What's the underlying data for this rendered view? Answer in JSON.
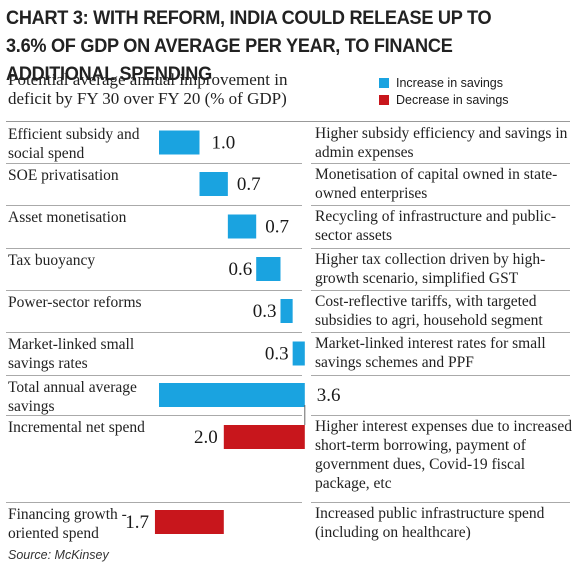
{
  "chart_data": {
    "type": "bar",
    "title": "CHART 3: WITH REFORM, INDIA COULD RELEASE UP TO 3.6% OF GDP ON AVERAGE PER YEAR, TO FINANCE ADDITIONAL SPENDING",
    "subtitle": "Potential average annual improvement in deficit by FY 30 over FY 20 (% of GDP)",
    "legend": [
      {
        "label": "Increase in savings",
        "color": "#1aa3e0"
      },
      {
        "label": "Decrease in savings",
        "color": "#c8161c"
      }
    ],
    "legend_position": "top-right",
    "orientation": "horizontal",
    "chart_style": "waterfall",
    "rows": [
      {
        "label": "Efficient subsidy and social spend",
        "value": 1.0,
        "value_label": "1.0",
        "kind": "increase",
        "description": "Higher subsidy efficiency and savings in admin expenses"
      },
      {
        "label": "SOE privatisation",
        "value": 0.7,
        "value_label": "0.7",
        "kind": "increase",
        "description": "Monetisation of capital owned in state-owned enterprises"
      },
      {
        "label": "Asset monetisation",
        "value": 0.7,
        "value_label": "0.7",
        "kind": "increase",
        "description": "Recycling of infrastructure and public-sector assets"
      },
      {
        "label": "Tax buoyancy",
        "value": 0.6,
        "value_label": "0.6",
        "kind": "increase",
        "description": "Higher tax collection driven by high-growth scenario, simplified GST"
      },
      {
        "label": "Power-sector reforms",
        "value": 0.3,
        "value_label": "0.3",
        "kind": "increase",
        "description": "Cost-reflective tariffs, with targeted subsidies to agri, household segment"
      },
      {
        "label": "Market-linked small savings rates",
        "value": 0.3,
        "value_label": "0.3",
        "kind": "increase",
        "description": "Market-linked interest rates for small savings schemes and PPF"
      },
      {
        "label": "Total annual average savings",
        "value": 3.6,
        "value_label": "3.6",
        "kind": "total",
        "description": ""
      },
      {
        "label": "Incremental net spend",
        "value": -2.0,
        "value_label": "2.0",
        "kind": "decrease",
        "description": "Higher interest expenses due to increased short-term borrowing, payment of government dues, Covid-19 fiscal package, etc"
      },
      {
        "label": "Financing growth -oriented spend",
        "value": -1.7,
        "value_label": "1.7",
        "kind": "decrease",
        "description": "Increased public infrastructure spend (including on healthcare)"
      }
    ],
    "source": "Source: McKinsey"
  }
}
